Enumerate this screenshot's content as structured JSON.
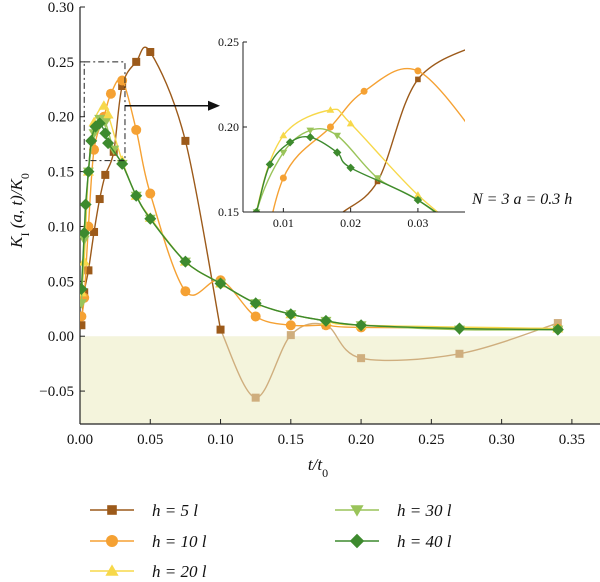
{
  "chart_data": {
    "type": "line",
    "xlabel": "t/t0",
    "ylabel": "K_I (a, t)/K_0",
    "xlim": [
      0,
      0.37
    ],
    "ylim": [
      -0.08,
      0.3
    ],
    "xticks": [
      "0.00",
      "0.05",
      "0.10",
      "0.15",
      "0.20",
      "0.25",
      "0.30",
      "0.35"
    ],
    "yticks": [
      "−0.05",
      "0.00",
      "0.05",
      "0.10",
      "0.15",
      "0.20",
      "0.25",
      "0.30"
    ],
    "negative_region_fill": "#f4f4dc",
    "annotation": "N = 3  a = 0.3 h",
    "legend_position": "bottom",
    "series": [
      {
        "name": "h = 5 l",
        "marker": "square",
        "color": "#9c5a1a",
        "negative_color": "#cfae7e",
        "points": [
          [
            0.001,
            0.01
          ],
          [
            0.003,
            0.04
          ],
          [
            0.006,
            0.06
          ],
          [
            0.01,
            0.095
          ],
          [
            0.014,
            0.125
          ],
          [
            0.018,
            0.147
          ],
          [
            0.024,
            0.168
          ],
          [
            0.03,
            0.228
          ],
          [
            0.04,
            0.25
          ],
          [
            0.05,
            0.259
          ],
          [
            0.075,
            0.178
          ],
          [
            0.1,
            0.006
          ],
          [
            0.125,
            -0.056
          ],
          [
            0.15,
            0.001
          ],
          [
            0.175,
            0.01
          ],
          [
            0.2,
            -0.02
          ],
          [
            0.27,
            -0.016
          ],
          [
            0.34,
            0.012
          ]
        ]
      },
      {
        "name": "h = 10 l",
        "marker": "circle",
        "color": "#f5a133",
        "points": [
          [
            0.001,
            0.018
          ],
          [
            0.003,
            0.035
          ],
          [
            0.006,
            0.1
          ],
          [
            0.01,
            0.17
          ],
          [
            0.017,
            0.2
          ],
          [
            0.022,
            0.221
          ],
          [
            0.03,
            0.233
          ],
          [
            0.04,
            0.188
          ],
          [
            0.05,
            0.13
          ],
          [
            0.075,
            0.041
          ],
          [
            0.1,
            0.051
          ],
          [
            0.125,
            0.018
          ],
          [
            0.15,
            0.01
          ],
          [
            0.175,
            0.01
          ],
          [
            0.2,
            0.008
          ],
          [
            0.34,
            0.007
          ]
        ]
      },
      {
        "name": "h = 20 l",
        "marker": "triangle-up",
        "color": "#f7d84a",
        "points": [
          [
            0.001,
            0.04
          ],
          [
            0.003,
            0.068
          ],
          [
            0.006,
            0.15
          ],
          [
            0.01,
            0.195
          ],
          [
            0.017,
            0.21
          ],
          [
            0.02,
            0.202
          ],
          [
            0.03,
            0.16
          ],
          [
            0.04,
            0.128
          ],
          [
            0.05,
            0.108
          ],
          [
            0.075,
            0.068
          ],
          [
            0.1,
            0.048
          ],
          [
            0.125,
            0.03
          ],
          [
            0.15,
            0.02
          ],
          [
            0.175,
            0.014
          ],
          [
            0.2,
            0.01
          ],
          [
            0.34,
            0.007
          ]
        ]
      },
      {
        "name": "h = 30 l",
        "marker": "triangle-down",
        "color": "#9ac45a",
        "points": [
          [
            0.001,
            0.03
          ],
          [
            0.003,
            0.088
          ],
          [
            0.006,
            0.15
          ],
          [
            0.01,
            0.185
          ],
          [
            0.014,
            0.198
          ],
          [
            0.018,
            0.195
          ],
          [
            0.024,
            0.17
          ],
          [
            0.03,
            0.157
          ],
          [
            0.04,
            0.128
          ],
          [
            0.05,
            0.107
          ],
          [
            0.075,
            0.068
          ],
          [
            0.1,
            0.048
          ],
          [
            0.125,
            0.03
          ],
          [
            0.15,
            0.02
          ],
          [
            0.175,
            0.014
          ],
          [
            0.2,
            0.01
          ],
          [
            0.27,
            0.006
          ],
          [
            0.34,
            0.006
          ]
        ]
      },
      {
        "name": "h = 40 l",
        "marker": "diamond",
        "color": "#3d8a2e",
        "points": [
          [
            0.001,
            0.043
          ],
          [
            0.003,
            0.094
          ],
          [
            0.004,
            0.12
          ],
          [
            0.006,
            0.15
          ],
          [
            0.008,
            0.178
          ],
          [
            0.011,
            0.191
          ],
          [
            0.014,
            0.194
          ],
          [
            0.018,
            0.185
          ],
          [
            0.02,
            0.176
          ],
          [
            0.03,
            0.157
          ],
          [
            0.04,
            0.128
          ],
          [
            0.05,
            0.107
          ],
          [
            0.075,
            0.068
          ],
          [
            0.1,
            0.048
          ],
          [
            0.125,
            0.03
          ],
          [
            0.15,
            0.02
          ],
          [
            0.175,
            0.014
          ],
          [
            0.2,
            0.01
          ],
          [
            0.27,
            0.007
          ],
          [
            0.34,
            0.006
          ]
        ]
      }
    ],
    "inset": {
      "xlim": [
        0.004,
        0.037
      ],
      "ylim": [
        0.15,
        0.25
      ],
      "xticks": [
        "0.01",
        "0.02",
        "0.03"
      ],
      "yticks": [
        "0.15",
        "0.20",
        "0.25"
      ]
    }
  }
}
